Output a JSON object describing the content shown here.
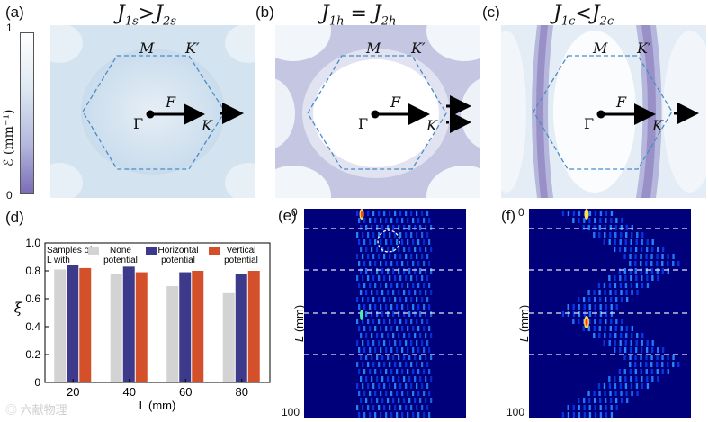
{
  "panels": {
    "a": {
      "label": "(a)",
      "title_main": "J",
      "title_sub1": "1s",
      "title_rel": ">",
      "title_sub2": "2s"
    },
    "b": {
      "label": "(b)",
      "title_main": "J",
      "title_sub1": "1h",
      "title_rel": "=",
      "title_sub2": "2h"
    },
    "c": {
      "label": "(c)",
      "title_main": "J",
      "title_sub1": "1c",
      "title_rel": "<",
      "title_sub2": "2c"
    },
    "d": {
      "label": "(d)"
    },
    "e": {
      "label": "(e)"
    },
    "f": {
      "label": "(f)"
    }
  },
  "bz_points": {
    "M": "M",
    "Kp": "K′",
    "F": "F",
    "Gamma": "Γ",
    "K": "K"
  },
  "colorbar": {
    "max": "1",
    "min": "0",
    "label": "ℰ (mm⁻¹)"
  },
  "colors": {
    "none": "#d3d3d3",
    "horizontal": "#3d3a8c",
    "vertical": "#d4502a",
    "heat_bg": "#00007a"
  },
  "heatmaps": {
    "y_ticks": [
      "0",
      "100"
    ],
    "ylabel": "L (mm)"
  },
  "chart_data": {
    "type": "bar",
    "categories": [
      "20",
      "40",
      "60",
      "80"
    ],
    "series": [
      {
        "name": "None potential",
        "values": [
          0.81,
          0.78,
          0.69,
          0.64
        ]
      },
      {
        "name": "Horizontal potential",
        "values": [
          0.84,
          0.83,
          0.79,
          0.78
        ]
      },
      {
        "name": "Vertical potential",
        "values": [
          0.82,
          0.79,
          0.8,
          0.8
        ]
      }
    ],
    "legend_title": "Samples of L with",
    "legend_labels": [
      "None potential",
      "Horizontal potential",
      "Vertical potential"
    ],
    "xlabel": "L (mm)",
    "ylabel": "ξ",
    "ylim": [
      0,
      1.0
    ],
    "yticks": [
      "0",
      "0.2",
      "0.4",
      "0.6",
      "0.8",
      "1.0"
    ]
  }
}
